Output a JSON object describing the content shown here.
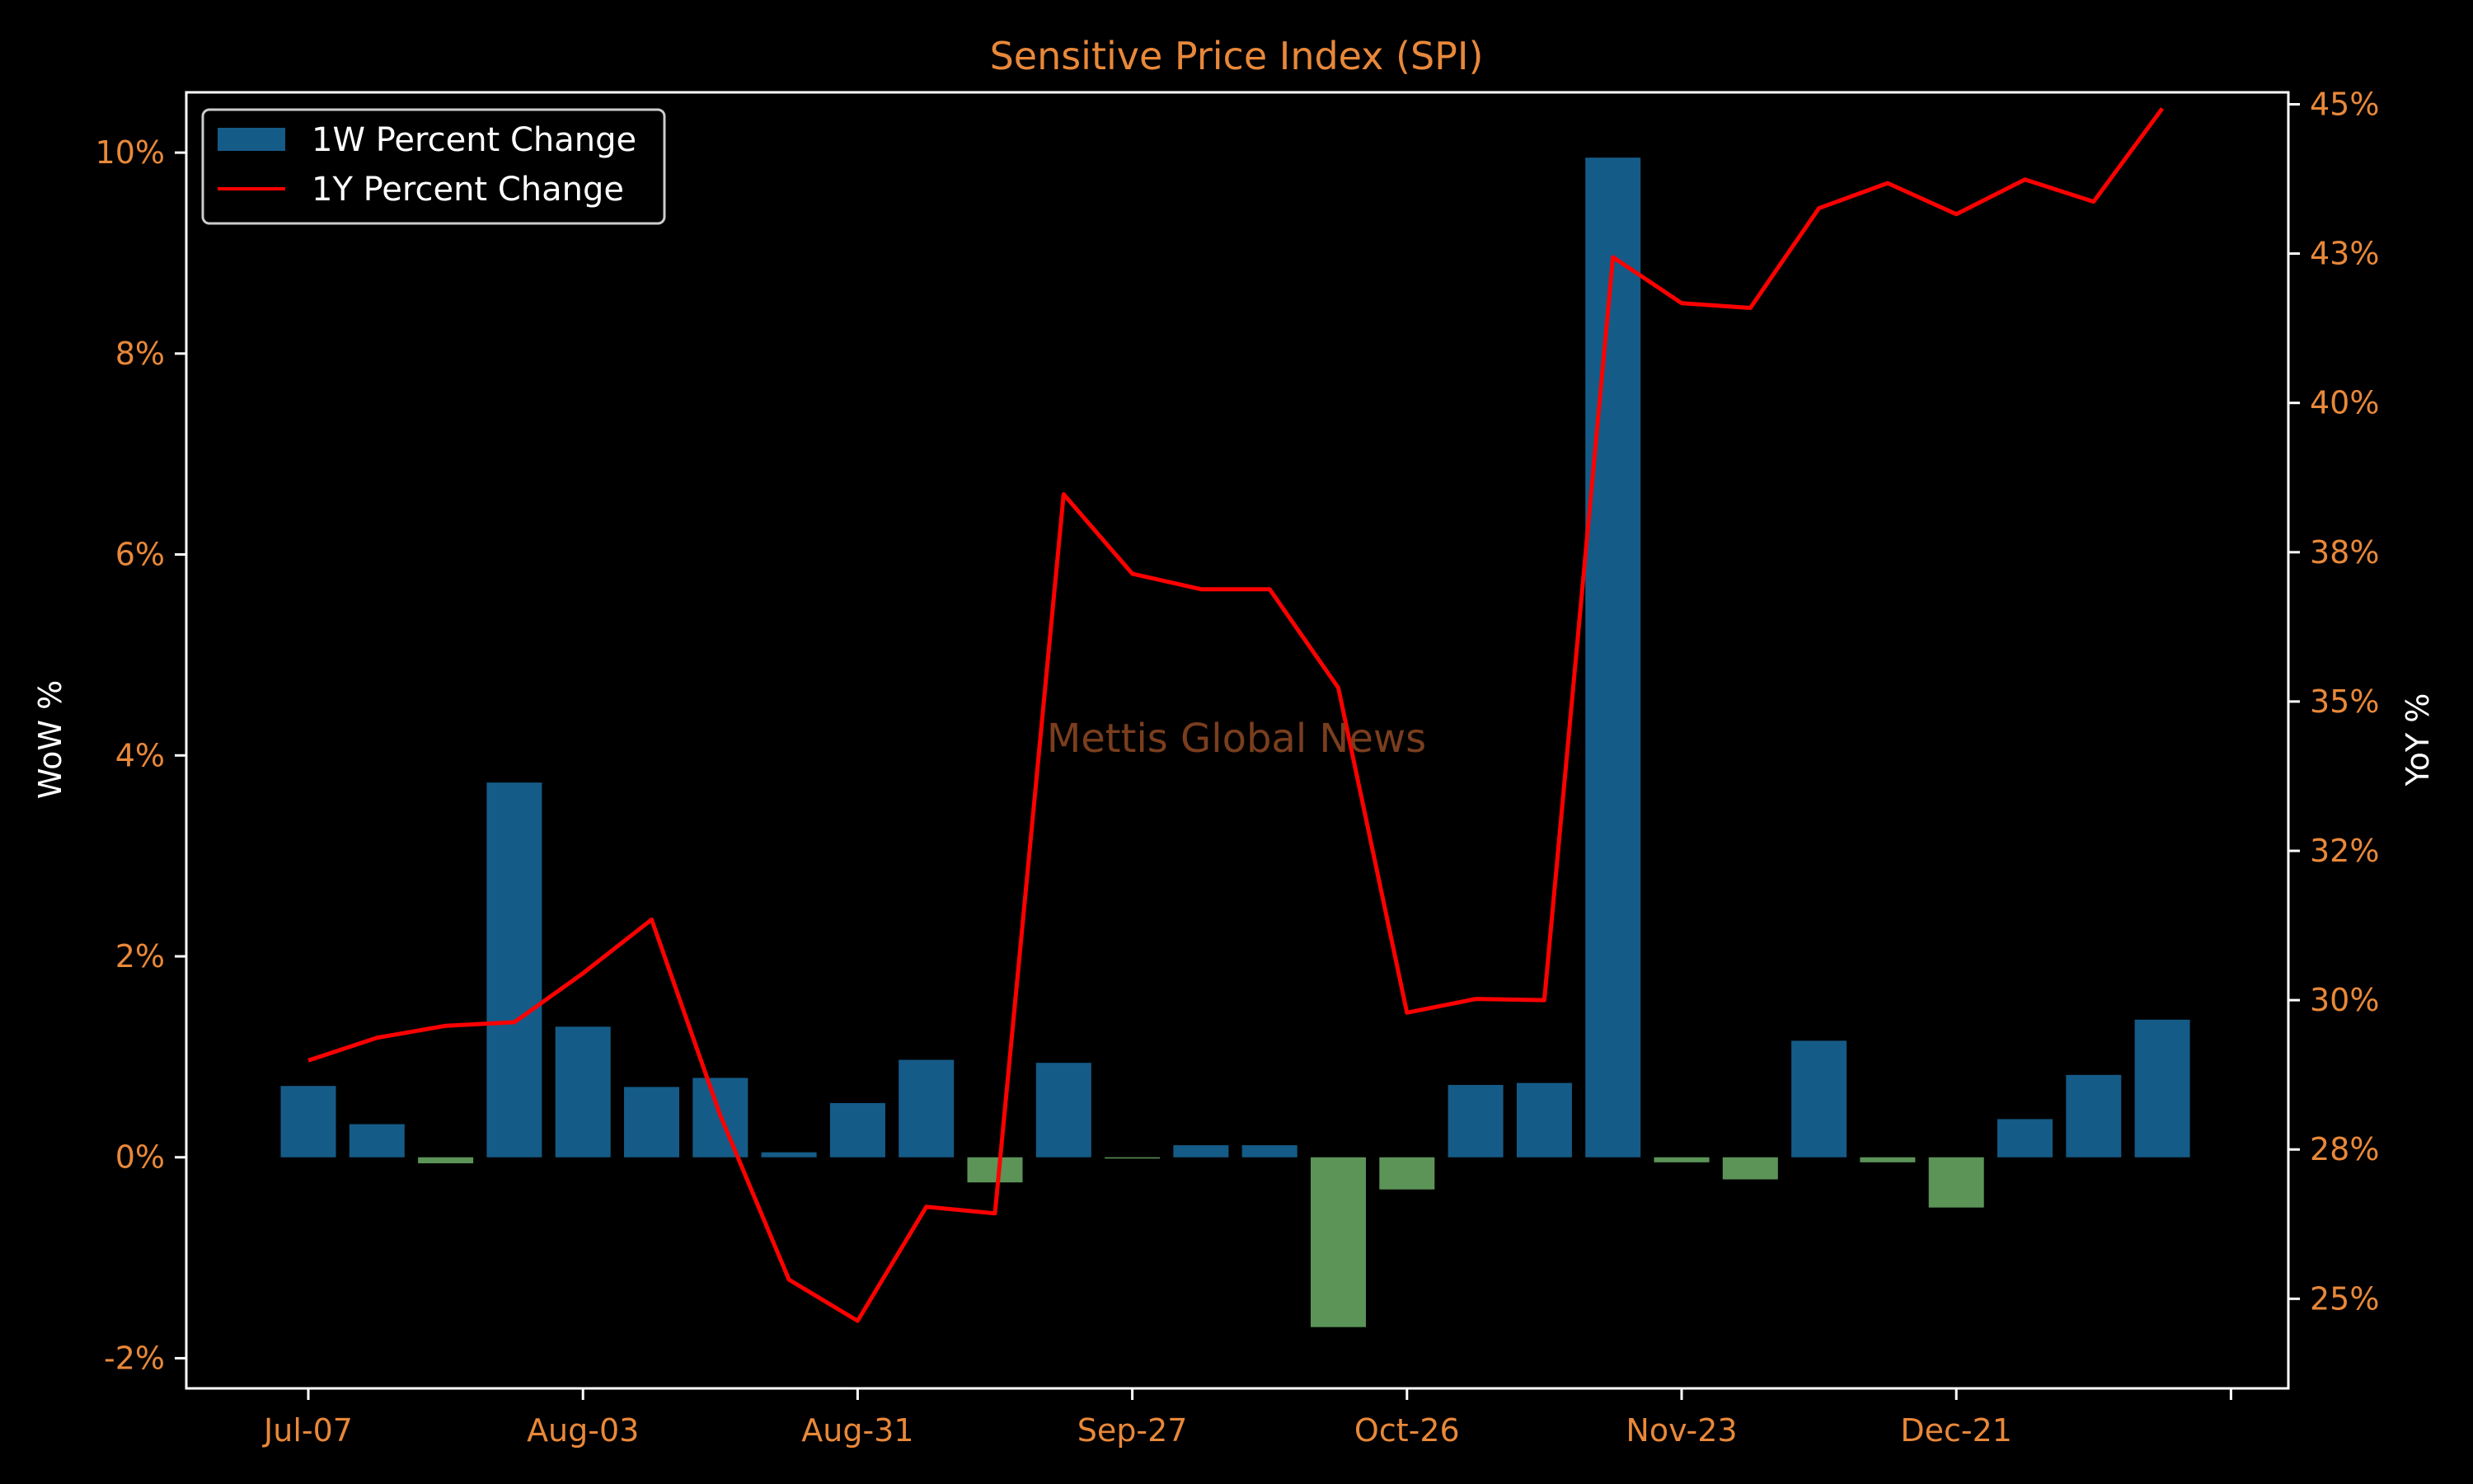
{
  "colors": {
    "background": "#000000",
    "axis": "#ffffff",
    "tick_label": "#e8883a",
    "title": "#e8883a",
    "axis_label": "#ffffff",
    "legend_text": "#ffffff",
    "legend_border": "#cccccc",
    "positive_bar": "#155b87",
    "negative_bar": "#5c9458",
    "line": "#ff0000",
    "watermark": "#7a3e1e"
  },
  "chart_data": {
    "type": "bar+line",
    "title": "Sensitive Price Index (SPI)",
    "watermark": "Mettis Global News",
    "ylabel": "WoW %",
    "y2label": "YoY %",
    "x_tick_labels": [
      "Jul-07",
      "Aug-03",
      "Aug-31",
      "Sep-27",
      "Oct-26",
      "Nov-23",
      "Dec-21",
      ""
    ],
    "y_ticks": [
      "-2%",
      "0%",
      "2%",
      "4%",
      "6%",
      "8%",
      "10%"
    ],
    "y2_ticks": [
      "25%",
      "28%",
      "30%",
      "32%",
      "35%",
      "38%",
      "40%",
      "43%",
      "45%"
    ],
    "ylim": [
      -2.3,
      10.6
    ],
    "y2lim": [
      23.5,
      45.2
    ],
    "legend": {
      "position": "top-left",
      "entries": [
        "1W Percent Change",
        "1Y Percent Change"
      ]
    },
    "series": [
      {
        "name": "1W Percent Change",
        "type": "bar",
        "values": [
          0.71,
          0.33,
          -0.06,
          3.73,
          1.3,
          0.7,
          0.79,
          0.05,
          0.54,
          0.97,
          -0.25,
          0.94,
          -0.01,
          0.12,
          0.12,
          -1.69,
          -0.32,
          0.72,
          0.74,
          9.95,
          -0.05,
          -0.22,
          1.16,
          -0.05,
          -0.5,
          0.38,
          0.82,
          1.37
        ]
      },
      {
        "name": "1Y Percent Change",
        "type": "line",
        "values": [
          28.99,
          29.37,
          29.57,
          29.63,
          30.45,
          31.35,
          28.07,
          25.32,
          24.63,
          26.54,
          26.43,
          38.47,
          37.14,
          36.88,
          36.88,
          35.23,
          29.79,
          30.02,
          30.0,
          42.44,
          41.67,
          41.59,
          43.26,
          43.68,
          43.16,
          43.74,
          43.37,
          44.93
        ]
      }
    ]
  }
}
